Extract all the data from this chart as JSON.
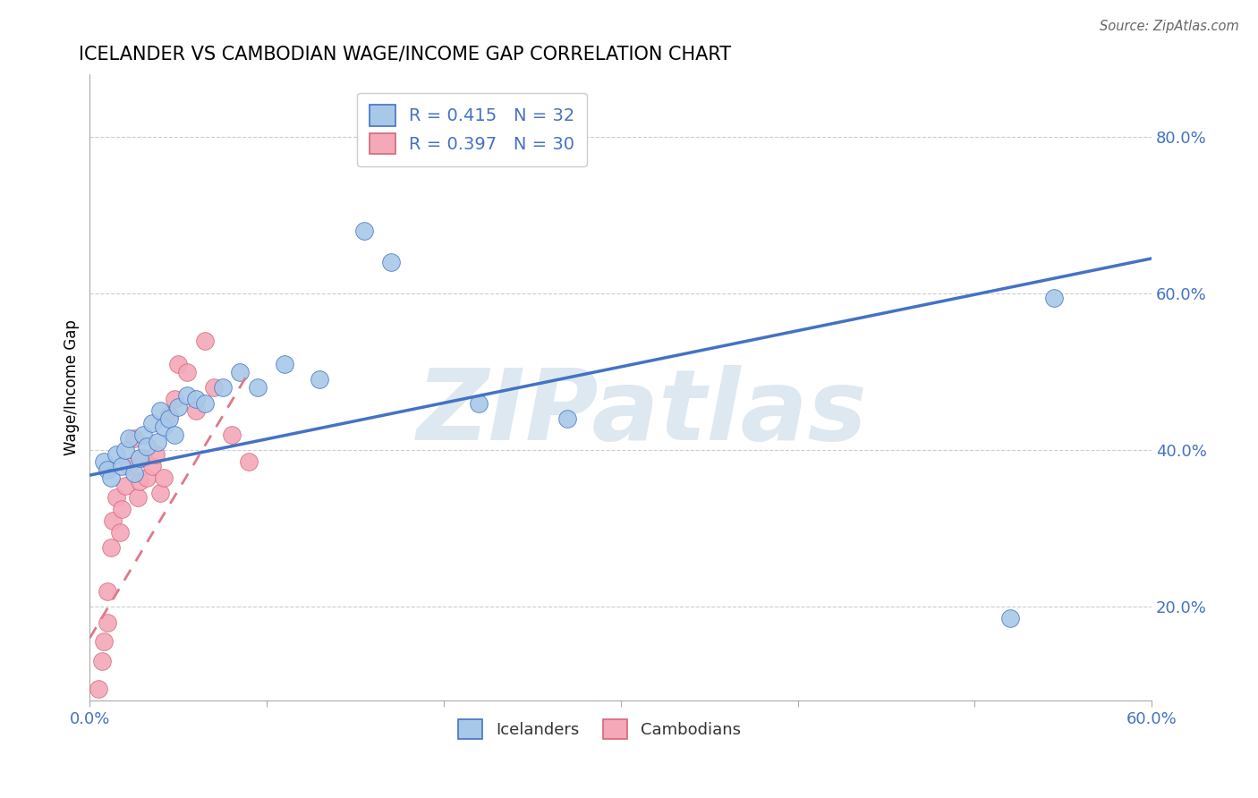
{
  "title": "ICELANDER VS CAMBODIAN WAGE/INCOME GAP CORRELATION CHART",
  "source": "Source: ZipAtlas.com",
  "xlim": [
    0.0,
    0.6
  ],
  "ylim": [
    0.08,
    0.88
  ],
  "ylabel": "Wage/Income Gap",
  "legend_r_icelander": "R = 0.415",
  "legend_n_icelander": "N = 32",
  "legend_r_cambodian": "R = 0.397",
  "legend_n_cambodian": "N = 30",
  "icelander_color": "#a8c8e8",
  "cambodian_color": "#f4a8b8",
  "trendline_icelander_color": "#4472c4",
  "trendline_cambodian_color": "#e07888",
  "legend_text_color": "#4472c4",
  "icelander_x": [
    0.008,
    0.01,
    0.012,
    0.015,
    0.018,
    0.02,
    0.022,
    0.025,
    0.028,
    0.03,
    0.032,
    0.035,
    0.038,
    0.04,
    0.042,
    0.045,
    0.048,
    0.05,
    0.055,
    0.06,
    0.065,
    0.075,
    0.085,
    0.095,
    0.11,
    0.13,
    0.155,
    0.17,
    0.22,
    0.27,
    0.52,
    0.545
  ],
  "icelander_y": [
    0.385,
    0.375,
    0.365,
    0.395,
    0.38,
    0.4,
    0.415,
    0.37,
    0.39,
    0.42,
    0.405,
    0.435,
    0.41,
    0.45,
    0.43,
    0.44,
    0.42,
    0.455,
    0.47,
    0.465,
    0.46,
    0.48,
    0.5,
    0.48,
    0.51,
    0.49,
    0.68,
    0.64,
    0.46,
    0.44,
    0.185,
    0.595
  ],
  "cambodian_x": [
    0.005,
    0.007,
    0.008,
    0.01,
    0.012,
    0.013,
    0.015,
    0.017,
    0.018,
    0.02,
    0.022,
    0.025,
    0.027,
    0.028,
    0.03,
    0.032,
    0.035,
    0.037,
    0.04,
    0.042,
    0.045,
    0.048,
    0.05,
    0.055,
    0.06,
    0.065,
    0.07,
    0.08,
    0.09,
    0.01
  ],
  "cambodian_y": [
    0.095,
    0.13,
    0.155,
    0.18,
    0.275,
    0.31,
    0.34,
    0.295,
    0.325,
    0.355,
    0.38,
    0.415,
    0.34,
    0.36,
    0.39,
    0.365,
    0.38,
    0.395,
    0.345,
    0.365,
    0.445,
    0.465,
    0.51,
    0.5,
    0.45,
    0.54,
    0.48,
    0.42,
    0.385,
    0.22
  ],
  "trendline_ice_x0": 0.0,
  "trendline_ice_y0": 0.368,
  "trendline_ice_x1": 0.6,
  "trendline_ice_y1": 0.645,
  "trendline_cam_x0": 0.0,
  "trendline_cam_y0": 0.16,
  "trendline_cam_x1": 0.09,
  "trendline_cam_y1": 0.5,
  "background_color": "#ffffff",
  "grid_color": "#cccccc",
  "watermark_text": "ZIPatlas",
  "watermark_color": "#dde8f0"
}
